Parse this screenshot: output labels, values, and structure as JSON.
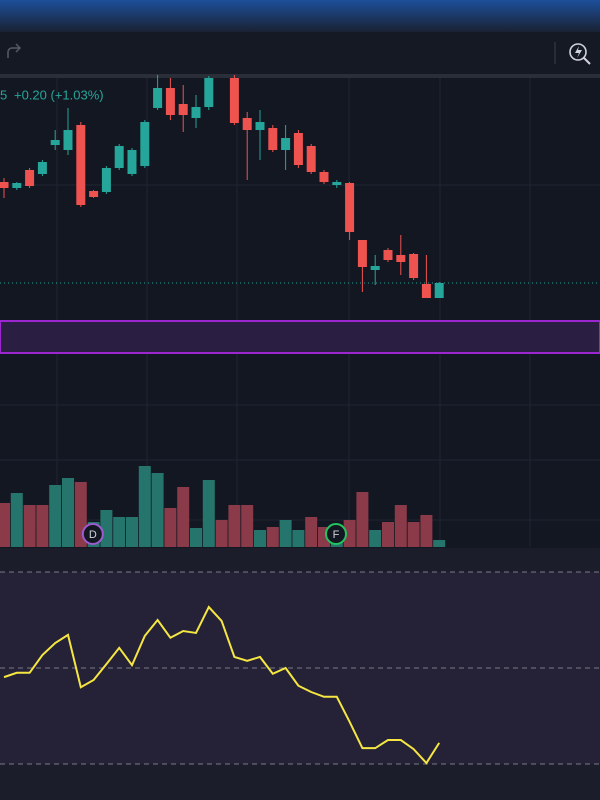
{
  "header": {
    "price_tail": "5",
    "change": "+0.20 (+1.03%)"
  },
  "markers": [
    {
      "label": "D",
      "index": 6
    },
    {
      "label": "F",
      "index": 25
    }
  ],
  "chart_data": [
    {
      "type": "candlestick",
      "up_color": "#26a69a",
      "down_color": "#ef5350",
      "ylim": [
        0,
        225
      ],
      "candles": [
        [
          118,
          122,
          102,
          112
        ],
        [
          112,
          118,
          110,
          117
        ],
        [
          130,
          132,
          112,
          114
        ],
        [
          126,
          140,
          124,
          138
        ],
        [
          155,
          170,
          150,
          160
        ],
        [
          150,
          192,
          145,
          170
        ],
        [
          175,
          178,
          93,
          95
        ],
        [
          109,
          110,
          102,
          103
        ],
        [
          108,
          134,
          106,
          132
        ],
        [
          132,
          156,
          130,
          154
        ],
        [
          126,
          152,
          124,
          150
        ],
        [
          134,
          180,
          132,
          178
        ],
        [
          192,
          225,
          190,
          212
        ],
        [
          212,
          222,
          180,
          185
        ],
        [
          196,
          215,
          168,
          185
        ],
        [
          182,
          205,
          172,
          193
        ],
        [
          193,
          224,
          190,
          222
        ],
        null,
        [
          222,
          225,
          175,
          177
        ],
        [
          182,
          188,
          120,
          170
        ],
        [
          170,
          190,
          140,
          178
        ],
        [
          172,
          175,
          148,
          150
        ],
        [
          150,
          175,
          130,
          162
        ],
        [
          167,
          170,
          132,
          135
        ],
        [
          154,
          156,
          126,
          128
        ],
        [
          128,
          130,
          116,
          118
        ],
        [
          115,
          120,
          112,
          118
        ],
        [
          117,
          118,
          60,
          68
        ],
        [
          60,
          60,
          8,
          33
        ],
        [
          30,
          45,
          15,
          34
        ],
        [
          50,
          52,
          38,
          40
        ],
        [
          45,
          65,
          25,
          38
        ],
        [
          46,
          47,
          20,
          22
        ],
        [
          16,
          45,
          2,
          2
        ],
        [
          2,
          18,
          2,
          17
        ]
      ],
      "last": 17
    },
    {
      "type": "bar",
      "ylim": [
        0,
        100
      ],
      "values": [
        44,
        54,
        42,
        42,
        62,
        69,
        65,
        25,
        37,
        30,
        30,
        81,
        74,
        39,
        60,
        19,
        67,
        27,
        42,
        42,
        17,
        20,
        27,
        17,
        30,
        20,
        22,
        27,
        55,
        17,
        25,
        42,
        25,
        32,
        7
      ],
      "colors": [
        "#8a3a48",
        "#25756d",
        "#8a3a48",
        "#8a3a48",
        "#25756d",
        "#25756d",
        "#8a3a48",
        "#25756d",
        "#25756d",
        "#25756d",
        "#25756d",
        "#25756d",
        "#25756d",
        "#8a3a48",
        "#8a3a48",
        "#25756d",
        "#25756d",
        "#8a3a48",
        "#8a3a48",
        "#8a3a48",
        "#25756d",
        "#8a3a48",
        "#25756d",
        "#25756d",
        "#8a3a48",
        "#8a3a48",
        "#25756d",
        "#8a3a48",
        "#8a3a48",
        "#25756d",
        "#8a3a48",
        "#8a3a48",
        "#8a3a48",
        "#8a3a48",
        "#25756d"
      ]
    },
    {
      "type": "line",
      "color": "#f5e642",
      "ylim": [
        22.5,
        75
      ],
      "levels": [
        70,
        50,
        30
      ],
      "values": [
        48.1,
        49,
        49,
        52.7,
        55.2,
        56.9,
        46,
        47.5,
        50.8,
        54.2,
        50.6,
        56.7,
        60,
        56.3,
        57.7,
        57.3,
        62.7,
        59.8,
        52.3,
        51.5,
        52.3,
        48.8,
        50,
        46.3,
        45,
        44,
        44,
        38.8,
        33.3,
        33.3,
        35,
        35,
        33.1,
        30.2,
        34.4
      ]
    }
  ]
}
